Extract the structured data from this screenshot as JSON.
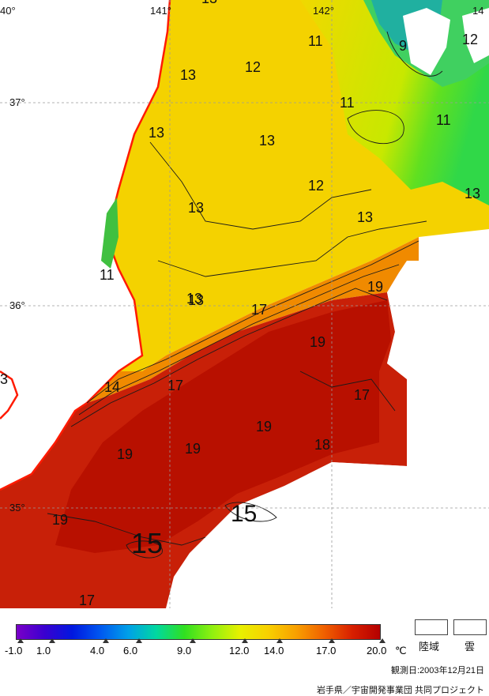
{
  "map": {
    "lon_labels": [
      "40°",
      "141°",
      "142°",
      "14"
    ],
    "lat_labels": [
      "37°",
      "36°",
      "35°"
    ],
    "contours": [
      {
        "text": "13",
        "size": 18
      },
      {
        "text": "11",
        "size": 18
      },
      {
        "text": "9",
        "size": 18
      },
      {
        "text": "12",
        "size": 18
      },
      {
        "text": "13",
        "size": 18
      },
      {
        "text": "12",
        "size": 18
      },
      {
        "text": "11",
        "size": 18
      },
      {
        "text": "11",
        "size": 18
      },
      {
        "text": "13",
        "size": 18
      },
      {
        "text": "13",
        "size": 18
      },
      {
        "text": "12",
        "size": 18
      },
      {
        "text": "13",
        "size": 18
      },
      {
        "text": "13",
        "size": 18
      },
      {
        "text": "13",
        "size": 18
      },
      {
        "text": "13",
        "size": 18
      },
      {
        "text": "11",
        "size": 18
      },
      {
        "text": "13",
        "size": 18
      },
      {
        "text": "19",
        "size": 18
      },
      {
        "text": "17",
        "size": 18
      },
      {
        "text": "19",
        "size": 18
      },
      {
        "text": "14",
        "size": 18
      },
      {
        "text": "17",
        "size": 18
      },
      {
        "text": "17",
        "size": 18
      },
      {
        "text": "19",
        "size": 18
      },
      {
        "text": "19",
        "size": 18
      },
      {
        "text": "19",
        "size": 18
      },
      {
        "text": "18",
        "size": 18
      },
      {
        "text": "15",
        "size": 30
      },
      {
        "text": "19",
        "size": 18
      },
      {
        "text": "15",
        "size": 36
      },
      {
        "text": "17",
        "size": 18
      },
      {
        "text": "3",
        "size": 18
      }
    ]
  },
  "legend": {
    "colors": [
      "#7a00c8",
      "#3a00d0",
      "#0018e0",
      "#0058f0",
      "#00a0e8",
      "#00d8a0",
      "#30e020",
      "#90f010",
      "#e8f000",
      "#f8d000",
      "#f8a000",
      "#f06000",
      "#d82000",
      "#b40000"
    ],
    "ticks": [
      "-1.0",
      "1.0",
      "4.0",
      "6.0",
      "9.0",
      "12.0",
      "14.0",
      "17.0",
      "20.0"
    ],
    "unit": "℃",
    "land_label": "陸域",
    "cloud_label": "雲"
  },
  "footer": {
    "date": "観測日:2003年12月21日",
    "credit": "岩手県／宇宙開発事業団 共同プロジェクト"
  }
}
